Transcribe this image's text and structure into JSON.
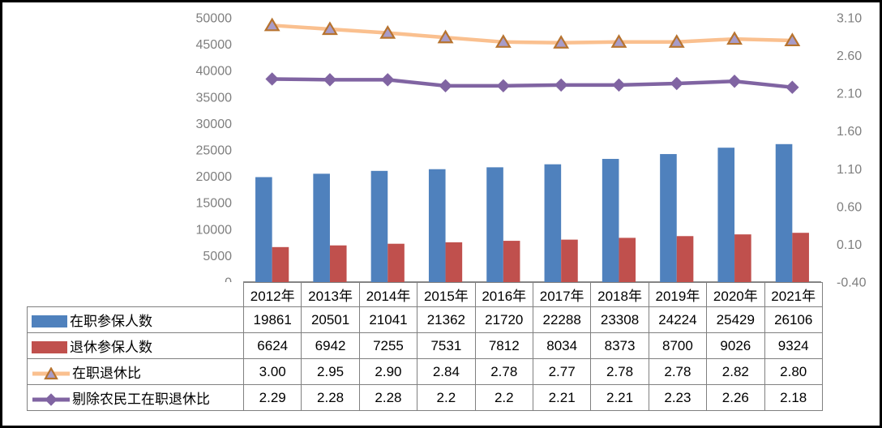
{
  "figure": {
    "background": "#FFFFFF",
    "frame_color": "#000000",
    "axis_text_color": "#7F7F7F",
    "axis_line_color": "#8A8A8A",
    "table_border_color": "#808080"
  },
  "chart_data": {
    "type": "combo",
    "title": "",
    "grid": false,
    "legend_position": "table-left",
    "categories": [
      "2012年",
      "2013年",
      "2014年",
      "2015年",
      "2016年",
      "2017年",
      "2018年",
      "2019年",
      "2020年",
      "2021年"
    ],
    "series": [
      {
        "name": "在职参保人数",
        "type": "bar",
        "axis": "left",
        "color": "#4F81BD",
        "values": [
          19861,
          20501,
          21041,
          21362,
          21720,
          22288,
          23308,
          24224,
          25429,
          26106
        ]
      },
      {
        "name": "退休参保人数",
        "type": "bar",
        "axis": "left",
        "color": "#C0504D",
        "values": [
          6624,
          6942,
          7255,
          7531,
          7812,
          8034,
          8373,
          8700,
          9026,
          9324
        ]
      },
      {
        "name": "在职退休比",
        "type": "line",
        "axis": "right",
        "color": "#FAC08F",
        "marker": "triangle",
        "marker_fill": "#A89CC8",
        "marker_stroke": "#B7732E",
        "values": [
          "3.00",
          "2.95",
          "2.90",
          "2.84",
          "2.78",
          "2.77",
          "2.78",
          "2.78",
          "2.82",
          "2.80"
        ]
      },
      {
        "name": "剔除农民工在职退休比",
        "type": "line",
        "axis": "right",
        "color": "#8064A2",
        "marker": "diamond",
        "marker_fill": "#8064A2",
        "marker_stroke": "#8064A2",
        "values": [
          "2.29",
          "2.28",
          "2.28",
          "2.2",
          "2.2",
          "2.21",
          "2.21",
          "2.23",
          "2.26",
          "2.18"
        ]
      }
    ],
    "axes": {
      "left": {
        "min": 0,
        "max": 50000,
        "step": 5000,
        "ticks": [
          "50000",
          "45000",
          "40000",
          "35000",
          "30000",
          "25000",
          "20000",
          "15000",
          "10000",
          "5000",
          "0"
        ]
      },
      "right": {
        "min": -0.4,
        "max": 3.1,
        "step": 0.5,
        "ticks": [
          "3.10",
          "2.60",
          "2.10",
          "1.60",
          "1.10",
          "0.60",
          "0.10",
          "-0.40"
        ]
      }
    }
  }
}
